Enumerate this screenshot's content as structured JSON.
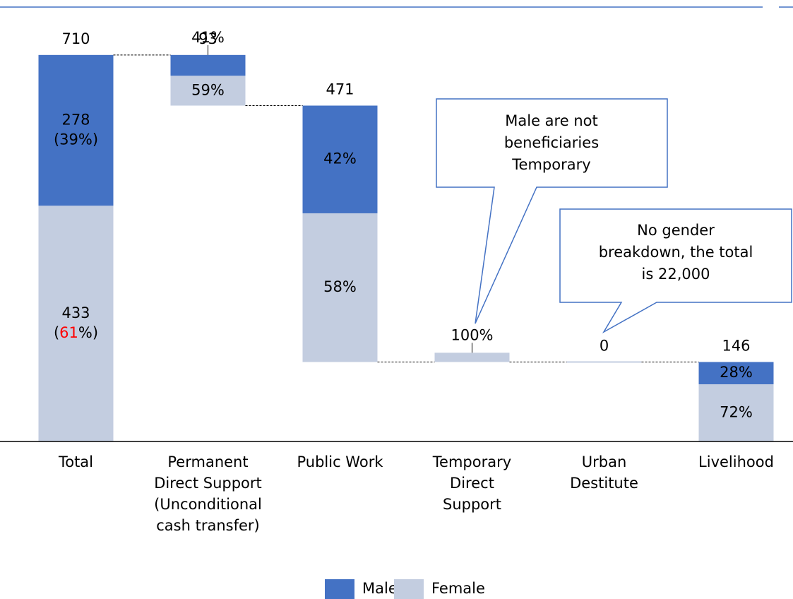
{
  "chart_data": {
    "type": "waterfall",
    "categories": [
      [
        "Total"
      ],
      [
        "Permanent",
        "Direct Support",
        "(Unconditional",
        "cash transfer)"
      ],
      [
        "Public Work"
      ],
      [
        "Temporary",
        "Direct",
        "Support"
      ],
      [
        "Urban",
        "Destitute"
      ],
      [
        "Livelihood"
      ]
    ],
    "totals": [
      710,
      93,
      471,
      17,
      0,
      146
    ],
    "total_value_labels": [
      "710",
      "93",
      "471",
      null,
      "0",
      "146"
    ],
    "bases": [
      0,
      617,
      146,
      146,
      146,
      0
    ],
    "ylim": [
      0,
      750
    ],
    "highlight_color": "#ff0000",
    "series": [
      {
        "name": "Male",
        "color": "#4472c4",
        "values": [
          39,
          41,
          42,
          0,
          null,
          28
        ],
        "value_labels": [
          "(39%)",
          "41%",
          "42%",
          null,
          null,
          "28%"
        ],
        "counts": [
          278,
          null,
          null,
          null,
          null,
          null
        ]
      },
      {
        "name": "Female",
        "color": "#c3cde0",
        "values": [
          61,
          59,
          58,
          100,
          null,
          72
        ],
        "value_labels": [
          "(61%)",
          "59%",
          "58%",
          "100%",
          null,
          "72%"
        ],
        "counts": [
          433,
          null,
          null,
          null,
          null,
          null
        ]
      }
    ],
    "annotations": [
      {
        "lines": [
          "Male are not",
          "beneficiaries",
          "Temporary"
        ]
      },
      {
        "lines": [
          "No gender",
          "breakdown, the total",
          "is  22,000"
        ]
      }
    ]
  }
}
